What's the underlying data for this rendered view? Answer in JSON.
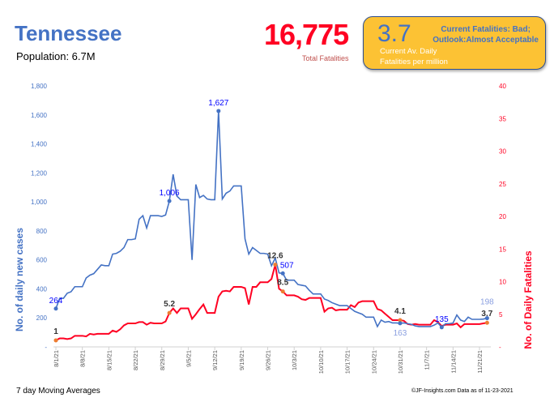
{
  "header": {
    "title": "Tennessee",
    "population": "Population: 6.7M",
    "total_fatalities": "16,775",
    "total_fatalities_label": "Total Fatalities"
  },
  "status_box": {
    "value": "3.7",
    "status_line1": "Current Fatalities: Bad;",
    "status_line2": "Outlook:Almost Acceptable",
    "sub_line1": "Current Av. Daily",
    "sub_line2": "Fatalities per million"
  },
  "footer": {
    "note": "7 day Moving Averages",
    "credit": "©JF-Insights.com  Data as of 11-23-2021"
  },
  "colors": {
    "cases": "#4472C4",
    "fatalities": "#FF0022",
    "box": "#FCC234"
  },
  "chart_data": {
    "type": "line",
    "start_date": "8/1/21",
    "x_tick_labels": [
      "8/1/21",
      "8/8/21",
      "8/15/21",
      "8/22/21",
      "8/29/21",
      "9/5/21",
      "9/12/21",
      "9/19/21",
      "9/26/21",
      "10/3/21",
      "10/10/21",
      "10/17/21",
      "10/24/21",
      "10/31/21",
      "11/7/21",
      "11/14/21",
      "11/21/21"
    ],
    "ylabel": "No. of daily new  cases",
    "y2label": "No. of Daily Fatalities",
    "ylim": [
      0,
      1800
    ],
    "y_ticks": [
      "-",
      "200",
      "400",
      "600",
      "800",
      "1,000",
      "1,200",
      "1,400",
      "1,600",
      "1,800"
    ],
    "y2lim": [
      0,
      40
    ],
    "y2_ticks": [
      "-",
      "5",
      "10",
      "15",
      "20",
      "25",
      "30",
      "35",
      "40"
    ],
    "series": [
      {
        "name": "Daily new cases",
        "axis": "left",
        "values": [
          264,
          335,
          335,
          370,
          380,
          415,
          415,
          415,
          475,
          495,
          505,
          535,
          565,
          560,
          560,
          640,
          645,
          660,
          685,
          740,
          740,
          745,
          880,
          905,
          820,
          905,
          905,
          905,
          900,
          910,
          1006,
          1190,
          1040,
          1015,
          1015,
          1015,
          600,
          1120,
          1030,
          1045,
          1020,
          1015,
          1015,
          1627,
          1020,
          1060,
          1075,
          1110,
          1110,
          1110,
          745,
          640,
          685,
          665,
          645,
          645,
          640,
          560,
          613,
          510,
          507,
          460,
          460,
          460,
          430,
          425,
          420,
          390,
          365,
          365,
          365,
          330,
          320,
          305,
          295,
          285,
          285,
          285,
          265,
          245,
          235,
          225,
          205,
          205,
          205,
          140,
          185,
          170,
          175,
          165,
          165,
          163,
          165,
          160,
          155,
          145,
          140,
          140,
          140,
          140,
          150,
          165,
          135,
          160,
          160,
          165,
          220,
          185,
          175,
          205,
          190,
          190,
          190,
          192,
          198
        ],
        "labels": [
          {
            "i": 0,
            "text": "264"
          },
          {
            "i": 30,
            "text": "1,006"
          },
          {
            "i": 43,
            "text": "1,627"
          },
          {
            "i": 60,
            "text": "507"
          },
          {
            "i": 91,
            "text": "163"
          },
          {
            "i": 102,
            "text": "135"
          },
          {
            "i": 114,
            "text": "198"
          }
        ]
      },
      {
        "name": "Daily fatalities",
        "axis": "right",
        "values": [
          1,
          1.3,
          1.3,
          1.2,
          1.3,
          1.7,
          1.7,
          1.7,
          1.6,
          2.0,
          1.9,
          2.0,
          2.0,
          2.0,
          2.0,
          2.5,
          2.3,
          2.7,
          3.3,
          3.6,
          3.6,
          3.6,
          3.8,
          3.8,
          3.4,
          3.7,
          3.6,
          3.6,
          3.6,
          3.9,
          5.2,
          5.9,
          5.2,
          5.9,
          5.9,
          5.9,
          4.3,
          5.0,
          5.8,
          6.5,
          5.2,
          5.2,
          5.2,
          7.7,
          8.5,
          8.6,
          8.5,
          9.2,
          9.2,
          9.2,
          9.0,
          6.5,
          9.2,
          9.2,
          9.9,
          9.9,
          9.9,
          10.4,
          12.6,
          8.9,
          8.5,
          7.9,
          7.9,
          7.9,
          7.7,
          7.3,
          7.2,
          7.5,
          7.5,
          7.5,
          7.5,
          5.4,
          5.9,
          6.0,
          5.6,
          5.7,
          5.7,
          5.7,
          6.4,
          6.1,
          6.8,
          7.0,
          7.0,
          7.0,
          7.0,
          5.8,
          5.6,
          5.1,
          4.6,
          4.1,
          4.1,
          4.1,
          4.0,
          3.5,
          3.4,
          3.5,
          3.4,
          3.4,
          3.4,
          3.4,
          4.1,
          3.8,
          3.2,
          3.4,
          3.4,
          3.4,
          3.6,
          3.0,
          3.5,
          3.5,
          3.5,
          3.5,
          3.5,
          3.6,
          3.7
        ],
        "labels": [
          {
            "i": 0,
            "text": "1"
          },
          {
            "i": 30,
            "text": "5.2"
          },
          {
            "i": 58,
            "text": "12.6"
          },
          {
            "i": 60,
            "text": "8.5"
          },
          {
            "i": 91,
            "text": "4.1"
          },
          {
            "i": 114,
            "text": "3.7"
          }
        ]
      }
    ]
  }
}
